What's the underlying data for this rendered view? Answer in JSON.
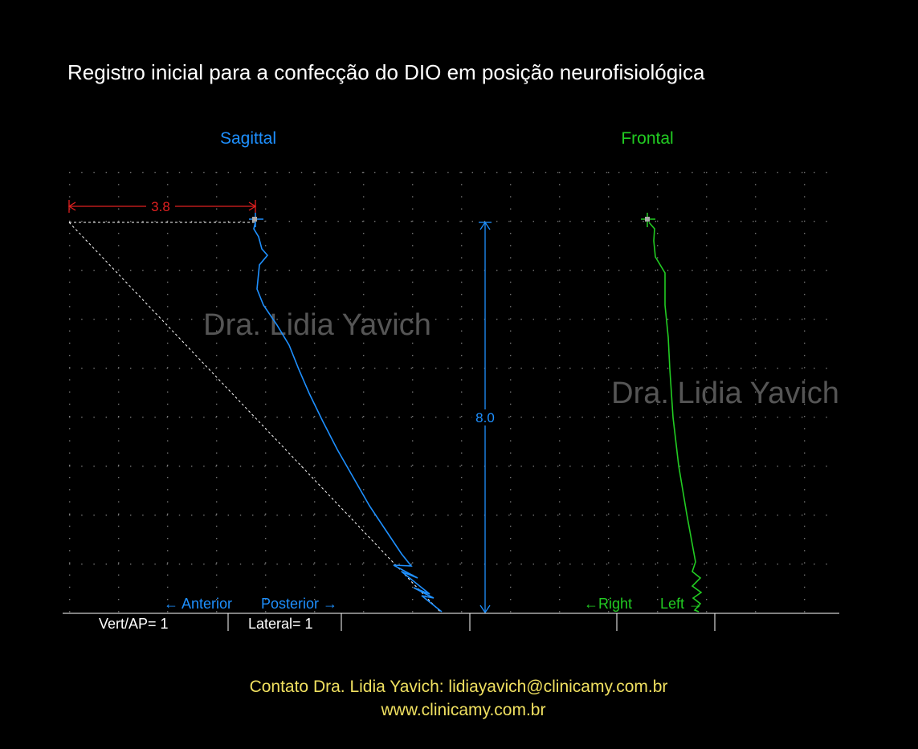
{
  "title": "Registro inicial para a confecção do DIO  em posição neurofisiológica",
  "panels": [
    {
      "label": "Sagittal"
    },
    {
      "label": "Frontal"
    }
  ],
  "measurements": {
    "horizontal": "3.8",
    "vertical": "8.0"
  },
  "watermarks": [
    "Dra. Lidia Yavich",
    "Dra. Lidia Yavich"
  ],
  "direction_labels": {
    "anterior": "← Anterior",
    "posterior": "Posterior →",
    "right": "←Right",
    "left": "Left →"
  },
  "scale_labels": [
    "Vert/AP= 1",
    "Lateral= 1"
  ],
  "footer": {
    "contact": "Contato  Dra. Lidia Yavich:  lidiayavich@clinicamy.com.br",
    "website": "www.clinicamy.com.br"
  }
}
